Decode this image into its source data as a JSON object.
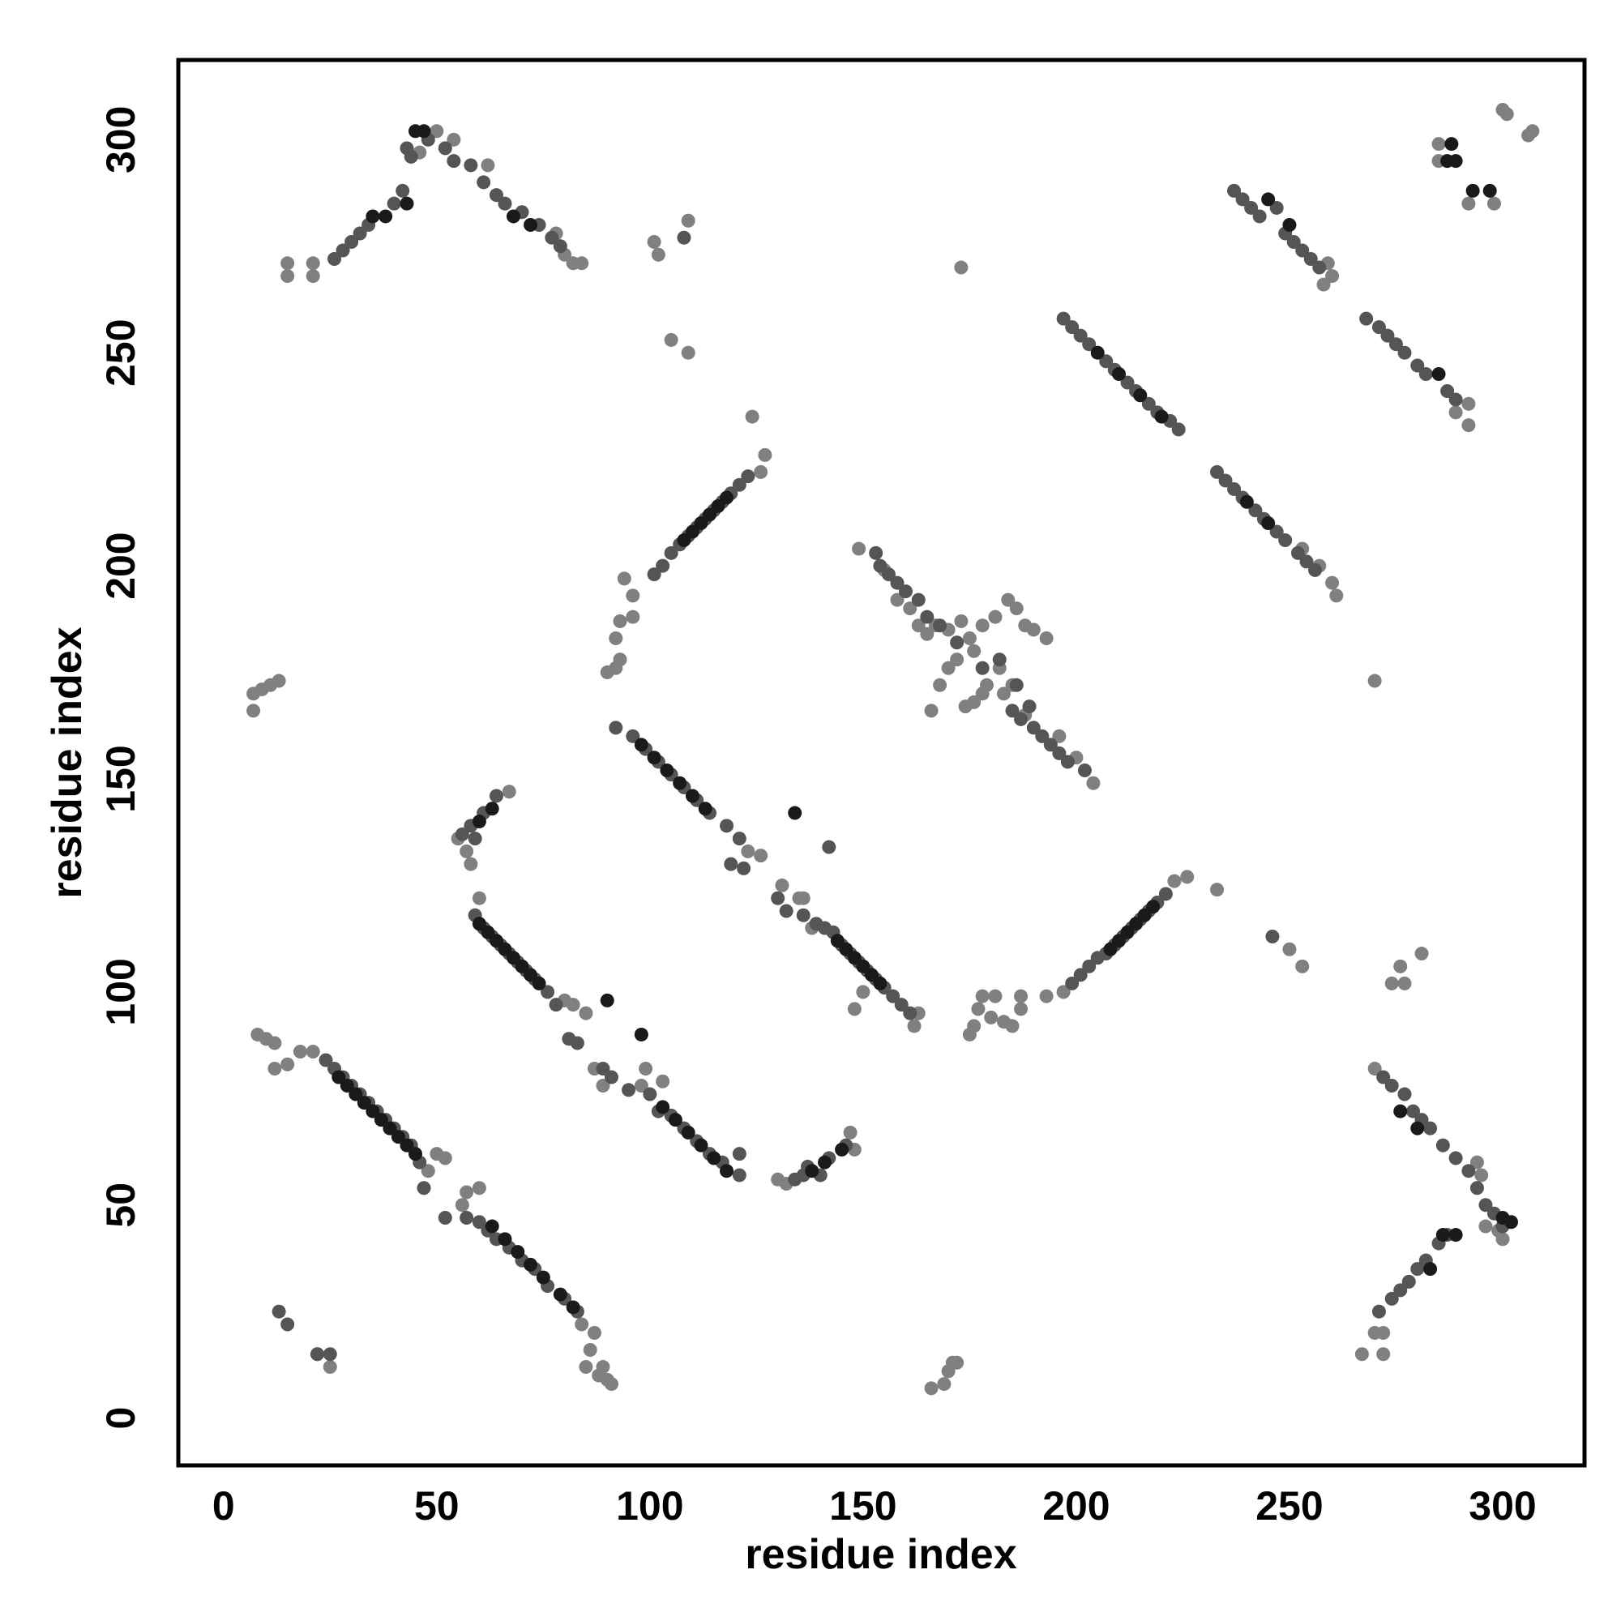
{
  "chart_data": {
    "type": "scatter",
    "xlabel": "residue index",
    "ylabel": "residue index",
    "xlim": [
      -10.6,
      319.2
    ],
    "ylim": [
      -11.1,
      318.7
    ],
    "xticks": [
      0,
      50,
      100,
      150,
      200,
      250,
      300
    ],
    "yticks": [
      0,
      50,
      100,
      150,
      200,
      250,
      300
    ],
    "series": [
      {
        "color": "#808080",
        "x": [
          7,
          7,
          9,
          11,
          13,
          8,
          10,
          12,
          12,
          15,
          18,
          21,
          25,
          22,
          85,
          88,
          89,
          90,
          91,
          86,
          87,
          84,
          166,
          169,
          170,
          171,
          172,
          90,
          92,
          93,
          92,
          93,
          96,
          94,
          96,
          101,
          102,
          109,
          105,
          109,
          124,
          127,
          126,
          173,
          270,
          233,
          250,
          253,
          274,
          277,
          276,
          281,
          226,
          223,
          285,
          285,
          292,
          298,
          300,
          301,
          306,
          307,
          15,
          15,
          21,
          21,
          82,
          84,
          80,
          78,
          50,
          46,
          54,
          62,
          149,
          155,
          158,
          161,
          163,
          165,
          167,
          170,
          173,
          175,
          176,
          178,
          181,
          184,
          186,
          188,
          190,
          193,
          168,
          170,
          172,
          174,
          176,
          178,
          179,
          182,
          183,
          185,
          188,
          166,
          175,
          176,
          177,
          178,
          180,
          181,
          183,
          185,
          187,
          187,
          193,
          197,
          294,
          295,
          296,
          299,
          300,
          267,
          270,
          272,
          272,
          270,
          58,
          57,
          67,
          60,
          55,
          130,
          132,
          147,
          148,
          80,
          82,
          85,
          87,
          89,
          99,
          98,
          103,
          123,
          126,
          131,
          135,
          136,
          138,
          148,
          150,
          162,
          163,
          204,
          200,
          196,
          258,
          260,
          259,
          292,
          292,
          289,
          261,
          260,
          257,
          253,
          48,
          50,
          52,
          56,
          57,
          60
        ],
        "values": [
          166,
          170,
          171,
          172,
          173,
          90,
          89,
          88,
          82,
          83,
          86,
          86,
          12,
          15,
          12,
          10,
          12,
          9,
          8,
          16,
          20,
          22,
          7,
          8,
          11,
          13,
          13,
          175,
          176,
          178,
          183,
          187,
          188,
          197,
          193,
          276,
          273,
          281,
          253,
          250,
          235,
          226,
          222,
          270,
          173,
          124,
          110,
          106,
          102,
          102,
          106,
          109,
          127,
          126,
          299,
          295,
          285,
          285,
          307,
          306,
          301,
          302,
          271,
          268,
          271,
          268,
          271,
          271,
          273,
          278,
          302,
          297,
          300,
          294,
          204,
          199,
          192,
          190,
          186,
          184,
          186,
          185,
          187,
          183,
          180,
          186,
          188,
          192,
          190,
          186,
          185,
          183,
          172,
          176,
          178,
          167,
          168,
          170,
          172,
          176,
          170,
          172,
          165,
          166,
          90,
          92,
          96,
          99,
          94,
          99,
          93,
          92,
          96,
          99,
          99,
          100,
          60,
          57,
          45,
          44,
          42,
          15,
          20,
          15,
          20,
          82,
          130,
          133,
          147,
          122,
          136,
          56,
          55,
          67,
          63,
          98,
          97,
          95,
          82,
          78,
          82,
          78,
          79,
          133,
          132,
          125,
          122,
          122,
          115,
          96,
          100,
          92,
          95,
          149,
          155,
          160,
          266,
          268,
          271,
          238,
          233,
          236,
          193,
          196,
          200,
          204,
          58,
          62,
          61,
          50,
          53,
          54
        ]
      },
      {
        "color": "#555555",
        "x": [
          24,
          26,
          28,
          30,
          32,
          34,
          36,
          38,
          40,
          42,
          44,
          46,
          47,
          52,
          57,
          60,
          62,
          64,
          67,
          70,
          73,
          76,
          80,
          83,
          59,
          61,
          63,
          65,
          67,
          69,
          71,
          73,
          76,
          78,
          81,
          83,
          89,
          91,
          95,
          100,
          102,
          105,
          108,
          111,
          114,
          117,
          121,
          121,
          92,
          96,
          99,
          102,
          105,
          108,
          111,
          114,
          118,
          121,
          119,
          122,
          130,
          132,
          136,
          139,
          141,
          143,
          145,
          147,
          149,
          151,
          153,
          155,
          157,
          159,
          161,
          153,
          154,
          156,
          158,
          160,
          163,
          165,
          190,
          192,
          194,
          196,
          198,
          202,
          197,
          199,
          201,
          203,
          207,
          209,
          212,
          214,
          217,
          219,
          222,
          224,
          233,
          235,
          237,
          239,
          242,
          244,
          247,
          249,
          252,
          254,
          256,
          237,
          239,
          241,
          243,
          247,
          249,
          251,
          253,
          255,
          257,
          268,
          271,
          273,
          275,
          277,
          280,
          282,
          287,
          289,
          101,
          103,
          105,
          107,
          109,
          111,
          113,
          115,
          117,
          119,
          121,
          123,
          199,
          201,
          203,
          205,
          207,
          209,
          211,
          213,
          215,
          217,
          219,
          221,
          26,
          28,
          30,
          32,
          34,
          40,
          42,
          43,
          44,
          48,
          52,
          54,
          58,
          61,
          64,
          66,
          70,
          74,
          77,
          79,
          56,
          58,
          59,
          61,
          64,
          134,
          136,
          137,
          140,
          142,
          146,
          271,
          274,
          276,
          278,
          280,
          282,
          285,
          287,
          272,
          274,
          277,
          279,
          281,
          283,
          286,
          289,
          292,
          294,
          296,
          298,
          300,
          168,
          172,
          178,
          182,
          185,
          187,
          186,
          189,
          13,
          15,
          22,
          25,
          142,
          246,
          108
        ],
        "values": [
          84,
          82,
          80,
          78,
          76,
          74,
          72,
          70,
          68,
          66,
          64,
          60,
          54,
          47,
          47,
          46,
          44,
          42,
          40,
          37,
          35,
          31,
          28,
          25,
          118,
          115,
          113,
          111,
          109,
          107,
          105,
          103,
          100,
          97,
          89,
          88,
          82,
          80,
          77,
          76,
          72,
          71,
          68,
          65,
          62,
          60,
          57,
          62,
          162,
          160,
          157,
          154,
          151,
          148,
          145,
          142,
          139,
          136,
          130,
          129,
          122,
          119,
          118,
          116,
          115,
          114,
          111,
          109,
          107,
          105,
          103,
          101,
          99,
          97,
          95,
          203,
          200,
          198,
          196,
          194,
          192,
          188,
          162,
          160,
          158,
          156,
          154,
          152,
          258,
          256,
          254,
          252,
          248,
          246,
          243,
          241,
          238,
          236,
          234,
          232,
          222,
          220,
          218,
          216,
          213,
          211,
          208,
          206,
          203,
          201,
          199,
          288,
          286,
          284,
          282,
          284,
          278,
          276,
          274,
          272,
          270,
          258,
          256,
          254,
          252,
          250,
          247,
          245,
          241,
          239,
          198,
          200,
          203,
          205,
          207,
          209,
          211,
          213,
          215,
          217,
          219,
          221,
          102,
          104,
          106,
          108,
          109,
          111,
          113,
          115,
          117,
          119,
          121,
          123,
          272,
          274,
          276,
          278,
          280,
          285,
          288,
          298,
          296,
          300,
          298,
          295,
          294,
          290,
          287,
          285,
          283,
          280,
          277,
          275,
          137,
          139,
          136,
          142,
          146,
          56,
          57,
          59,
          57,
          61,
          64,
          25,
          28,
          30,
          32,
          35,
          37,
          41,
          43,
          80,
          78,
          76,
          72,
          70,
          68,
          64,
          61,
          58,
          54,
          50,
          48,
          45,
          186,
          182,
          176,
          178,
          166,
          164,
          172,
          167,
          25,
          22,
          15,
          15,
          134,
          113,
          277
        ]
      },
      {
        "color": "#1a1a1a",
        "x": [
          27,
          29,
          31,
          33,
          35,
          37,
          39,
          41,
          43,
          45,
          63,
          66,
          69,
          72,
          75,
          79,
          82,
          60,
          62,
          64,
          66,
          68,
          70,
          72,
          74,
          103,
          106,
          109,
          112,
          115,
          118,
          98,
          101,
          104,
          107,
          110,
          113,
          144,
          146,
          148,
          150,
          152,
          154,
          108,
          110,
          112,
          114,
          116,
          118,
          208,
          210,
          212,
          214,
          216,
          218,
          205,
          210,
          215,
          220,
          240,
          245,
          245,
          250,
          285,
          60,
          63,
          138,
          141,
          145,
          283,
          286,
          289,
          300,
          302,
          280,
          276,
          35,
          38,
          43,
          45,
          47,
          68,
          72,
          288,
          287,
          289,
          293,
          297,
          90,
          98,
          134
        ],
        "values": [
          80,
          78,
          76,
          74,
          72,
          70,
          68,
          66,
          64,
          62,
          45,
          42,
          39,
          36,
          33,
          29,
          26,
          116,
          114,
          112,
          110,
          108,
          106,
          104,
          102,
          73,
          70,
          67,
          64,
          61,
          58,
          158,
          155,
          152,
          149,
          146,
          143,
          112,
          110,
          108,
          106,
          104,
          102,
          206,
          208,
          210,
          212,
          214,
          216,
          110,
          112,
          114,
          116,
          118,
          120,
          250,
          245,
          240,
          235,
          215,
          210,
          286,
          280,
          245,
          140,
          143,
          58,
          60,
          63,
          35,
          43,
          43,
          47,
          46,
          68,
          72,
          282,
          282,
          285,
          302,
          302,
          282,
          280,
          299,
          295,
          295,
          288,
          288,
          98,
          90,
          142
        ]
      }
    ]
  }
}
